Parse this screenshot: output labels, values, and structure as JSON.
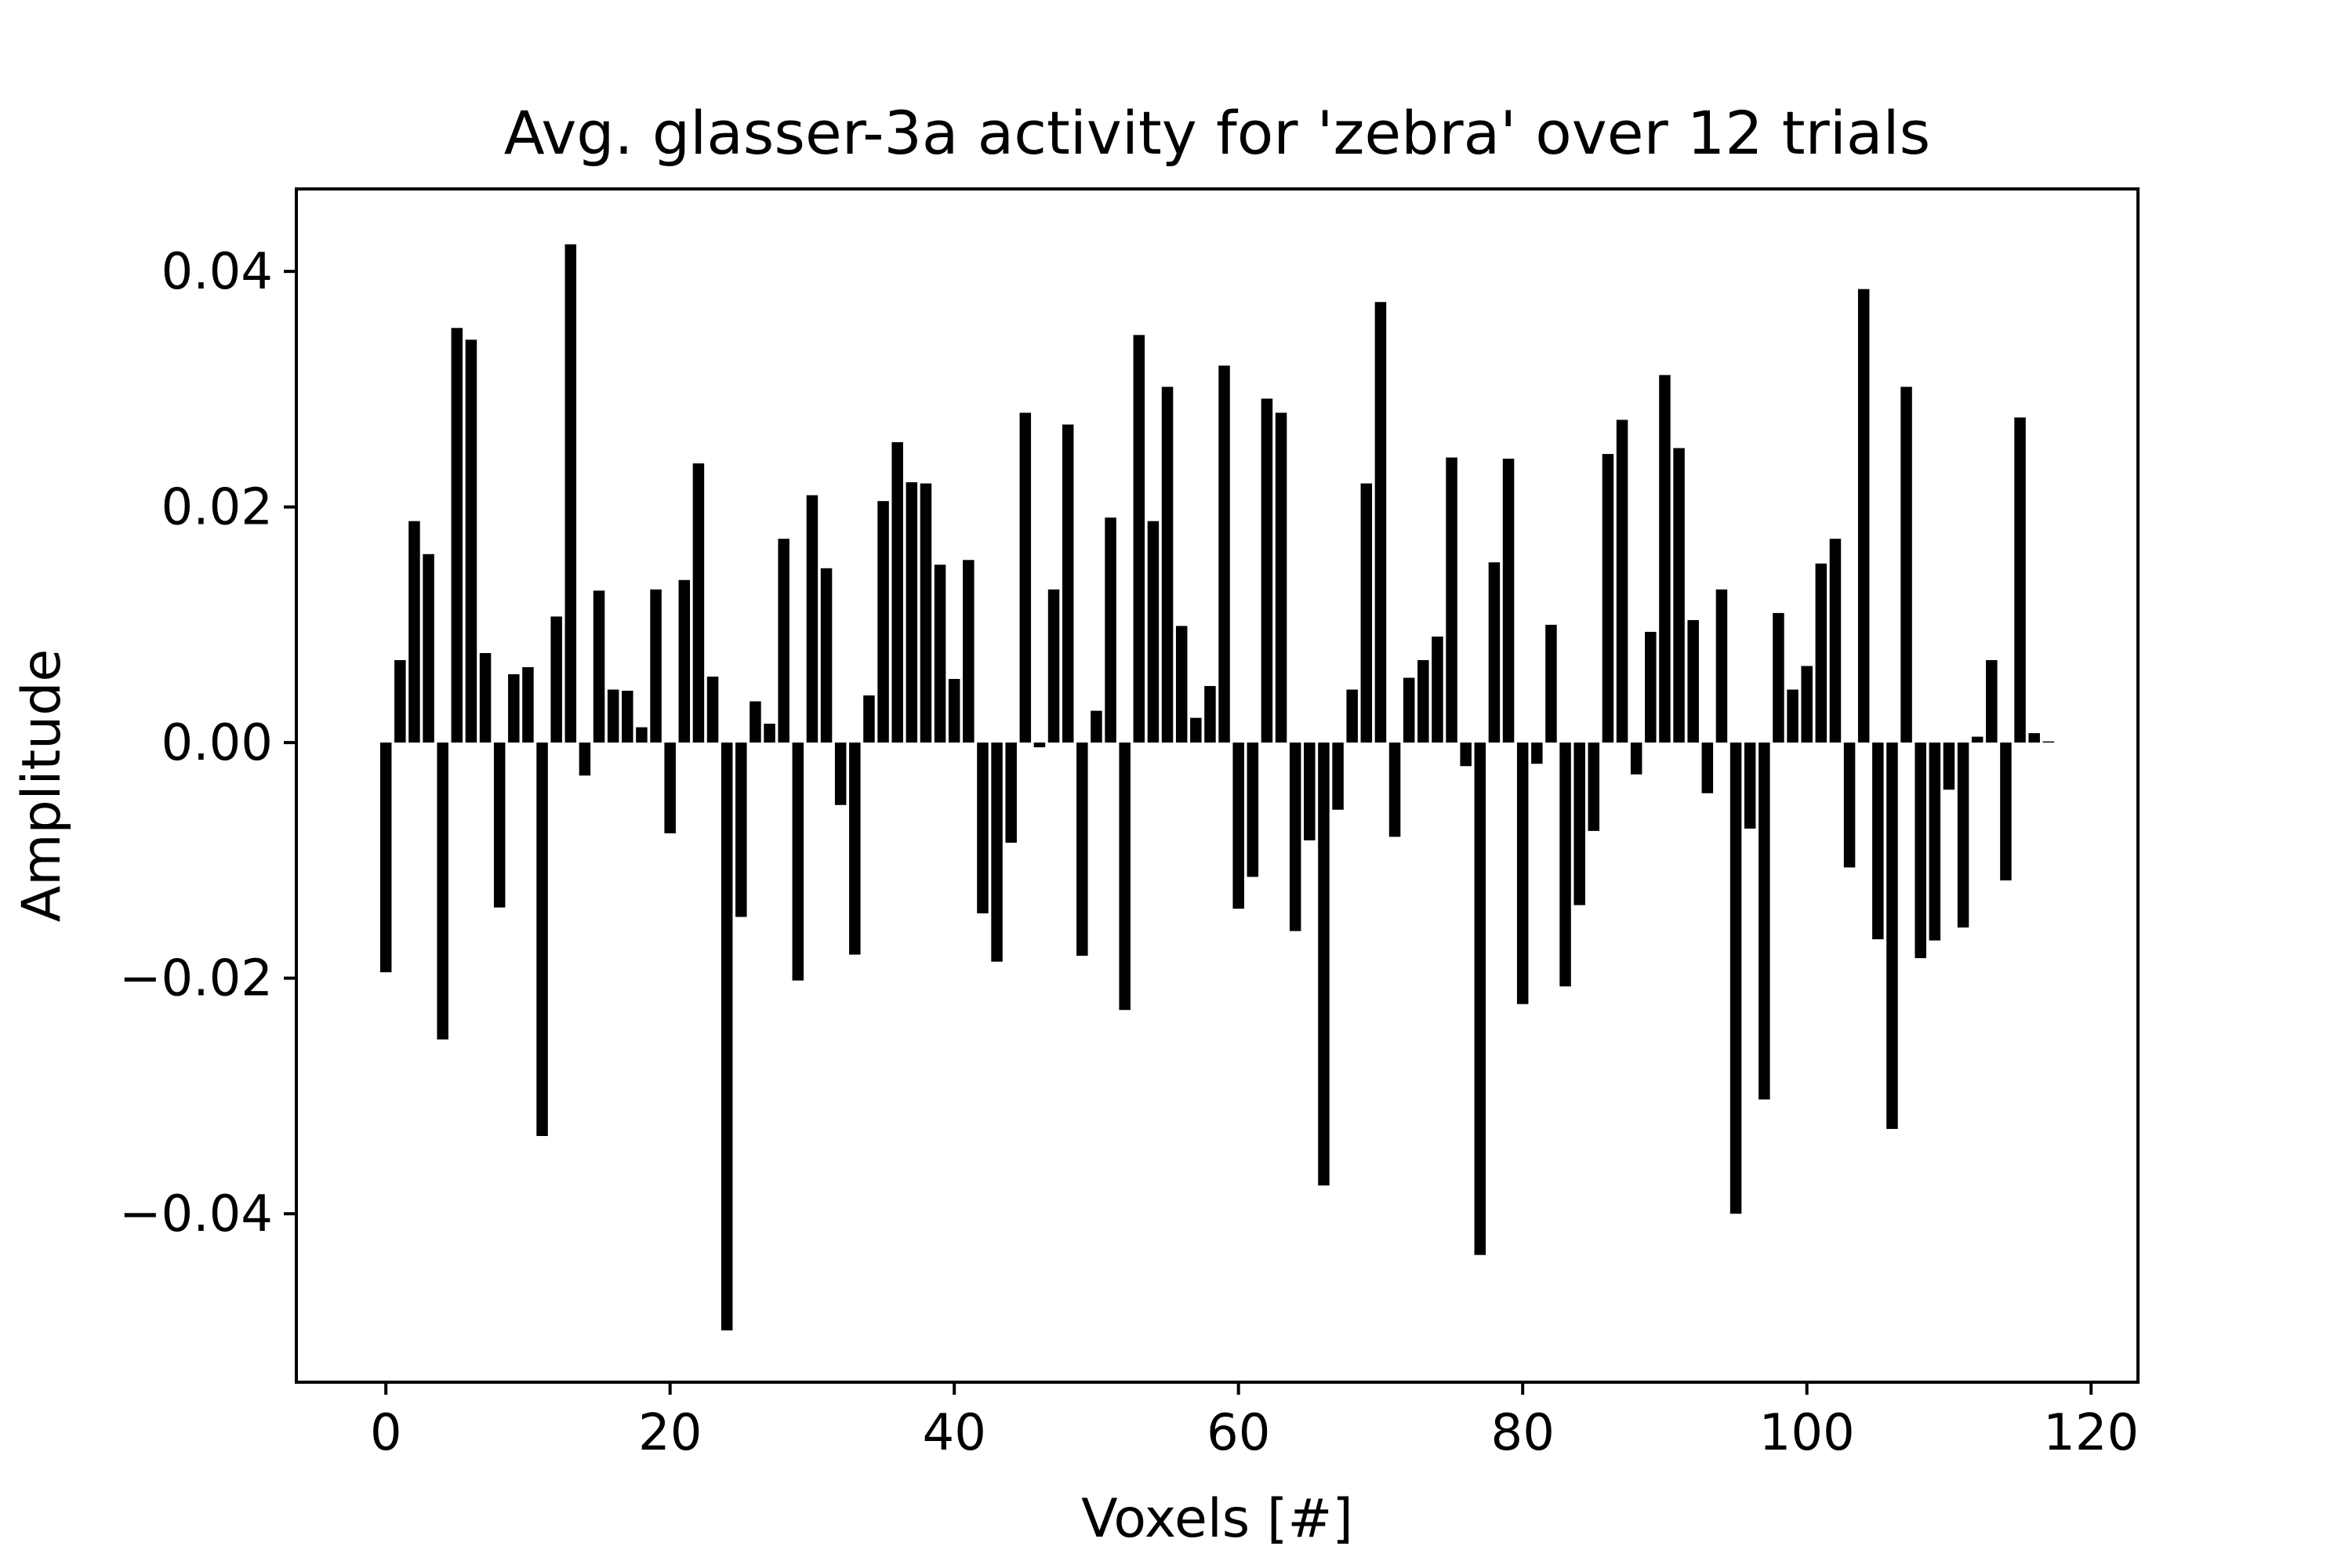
{
  "chart_data": {
    "type": "bar",
    "title": "Avg. glasser-3a activity for 'zebra' over 12 trials",
    "xlabel": "Voxels [#]",
    "ylabel": "Amplitude",
    "xlim": [
      -6.3,
      123.3
    ],
    "ylim": [
      -0.0543,
      0.047
    ],
    "xticks": [
      0,
      20,
      40,
      60,
      80,
      100,
      120
    ],
    "xtick_labels": [
      "0",
      "20",
      "40",
      "60",
      "80",
      "100",
      "120"
    ],
    "yticks": [
      -0.04,
      -0.02,
      0.0,
      0.02,
      0.04
    ],
    "ytick_labels": [
      "−0.04",
      "−0.02",
      "0.00",
      "0.02",
      "0.04"
    ],
    "bar_color": "#000000",
    "grid": false,
    "x": [
      0,
      1,
      2,
      3,
      4,
      5,
      6,
      7,
      8,
      9,
      10,
      11,
      12,
      13,
      14,
      15,
      16,
      17,
      18,
      19,
      20,
      21,
      22,
      23,
      24,
      25,
      26,
      27,
      28,
      29,
      30,
      31,
      32,
      33,
      34,
      35,
      36,
      37,
      38,
      39,
      40,
      41,
      42,
      43,
      44,
      45,
      46,
      47,
      48,
      49,
      50,
      51,
      52,
      53,
      54,
      55,
      56,
      57,
      58,
      59,
      60,
      61,
      62,
      63,
      64,
      65,
      66,
      67,
      68,
      69,
      70,
      71,
      72,
      73,
      74,
      75,
      76,
      77,
      78,
      79,
      80,
      81,
      82,
      83,
      84,
      85,
      86,
      87,
      88,
      89,
      90,
      91,
      92,
      93,
      94,
      95,
      96,
      97,
      98,
      99,
      100,
      101,
      102,
      103,
      104,
      105,
      106,
      107,
      108,
      109,
      110,
      111,
      112,
      113,
      114,
      115,
      116,
      117
    ],
    "values": [
      -0.0195,
      0.007,
      0.0188,
      0.016,
      -0.0252,
      0.0352,
      0.0342,
      0.0076,
      -0.014,
      0.0058,
      0.0064,
      -0.0334,
      0.0107,
      0.0423,
      -0.0028,
      0.0129,
      0.0045,
      0.0044,
      0.0013,
      0.013,
      -0.0077,
      0.0138,
      0.0237,
      0.0056,
      -0.0499,
      -0.0148,
      0.0035,
      0.0016,
      0.0173,
      -0.0202,
      0.021,
      0.0148,
      -0.0053,
      -0.018,
      0.004,
      0.0205,
      0.0255,
      0.0221,
      0.022,
      0.0151,
      0.0054,
      0.0155,
      -0.0145,
      -0.0186,
      -0.0085,
      0.028,
      -0.0004,
      0.013,
      0.027,
      -0.0181,
      0.0027,
      0.0191,
      -0.0227,
      0.0346,
      0.0188,
      0.0302,
      0.0099,
      0.0021,
      0.0048,
      0.032,
      -0.0141,
      -0.0114,
      0.0292,
      0.028,
      -0.016,
      -0.0083,
      -0.0376,
      -0.0057,
      0.0045,
      0.022,
      0.0374,
      -0.008,
      0.0055,
      0.007,
      0.009,
      0.0242,
      -0.002,
      -0.0435,
      0.0153,
      0.0241,
      -0.0222,
      -0.0018,
      0.01,
      -0.0207,
      -0.0138,
      -0.0075,
      0.0245,
      0.0274,
      -0.0027,
      0.0094,
      0.0312,
      0.025,
      0.0104,
      -0.0043,
      0.013,
      -0.04,
      -0.0073,
      -0.0303,
      0.011,
      0.0045,
      0.0065,
      0.0152,
      0.0173,
      -0.0106,
      0.0385,
      -0.0167,
      -0.0328,
      0.0302,
      -0.0183,
      -0.0168,
      -0.004,
      -0.0157,
      0.0005,
      0.007,
      -0.0117,
      0.0276,
      0.0008,
      0.0001
    ]
  }
}
